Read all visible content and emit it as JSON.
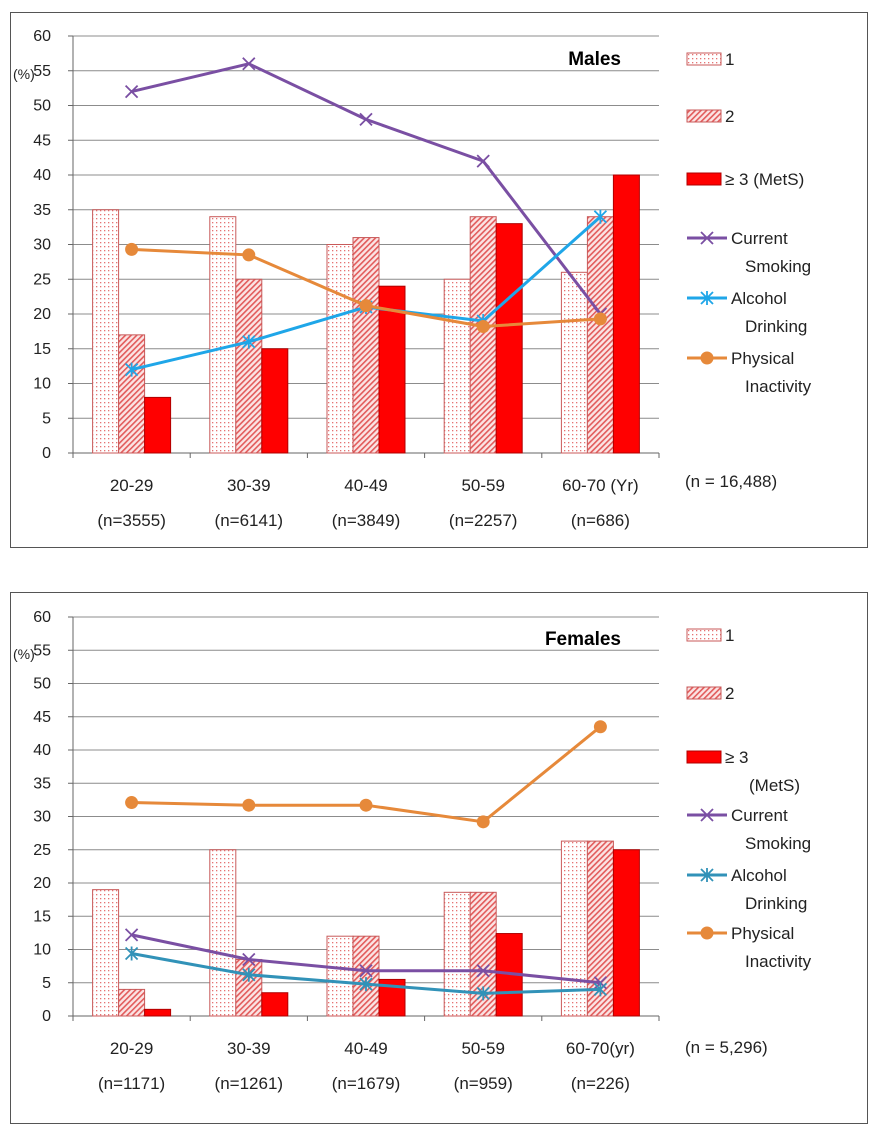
{
  "chart_data": [
    {
      "type": "bar",
      "title": "Males",
      "ylabel": "(%)",
      "ylim": [
        0,
        60
      ],
      "yticks": [
        0,
        5,
        10,
        15,
        20,
        25,
        30,
        35,
        40,
        45,
        50,
        55,
        60
      ],
      "categories": [
        "20-29",
        "30-39",
        "40-49",
        "50-59",
        "60-70  (Yr)"
      ],
      "category_n": [
        "(n=3555)",
        "(n=6141)",
        "(n=3849)",
        "(n=2257)",
        "(n=686)"
      ],
      "total_n": "(n = 16,488)",
      "series": [
        {
          "name": "1",
          "type": "bar",
          "pattern": "dots",
          "color": "#f4a6a6",
          "values": [
            35,
            34,
            30,
            25,
            26
          ]
        },
        {
          "name": "2",
          "type": "bar",
          "pattern": "hatch",
          "color": "#f08080",
          "values": [
            17,
            25,
            31,
            34,
            34
          ]
        },
        {
          "name": "≥ 3  (MetS)",
          "type": "bar",
          "pattern": "solid",
          "color": "#ff0000",
          "values": [
            8,
            15,
            24,
            33,
            40
          ]
        },
        {
          "name": "Current Smoking",
          "type": "line",
          "marker": "x",
          "color": "#7a4fa3",
          "values": [
            52,
            56,
            48,
            42,
            20
          ]
        },
        {
          "name": "Alcohol Drinking",
          "type": "line",
          "marker": "star",
          "color": "#1fa6e8",
          "values": [
            12,
            16,
            21,
            19,
            34
          ]
        },
        {
          "name": "Physical Inactivity",
          "type": "line",
          "marker": "circle",
          "color": "#e6893a",
          "values": [
            29.3,
            28.5,
            21.2,
            18.2,
            19.3
          ]
        }
      ],
      "legend_lines": [
        [
          "1"
        ],
        [
          "2"
        ],
        [
          "≥ 3  (MetS)"
        ],
        [
          "Current",
          "Smoking"
        ],
        [
          "Alcohol",
          "Drinking"
        ],
        [
          "Physical",
          "Inactivity"
        ]
      ],
      "legend": "right"
    },
    {
      "type": "bar",
      "title": "Females",
      "ylabel": "(%)",
      "ylim": [
        0,
        60
      ],
      "yticks": [
        0,
        5,
        10,
        15,
        20,
        25,
        30,
        35,
        40,
        45,
        50,
        55,
        60
      ],
      "categories": [
        "20-29",
        "30-39",
        "40-49",
        "50-59",
        "60-70(yr)"
      ],
      "category_n": [
        "(n=1171)",
        "(n=1261)",
        "(n=1679)",
        "(n=959)",
        "(n=226)"
      ],
      "total_n": "(n  =  5,296)",
      "series": [
        {
          "name": "1",
          "type": "bar",
          "pattern": "dots",
          "color": "#f4a6a6",
          "values": [
            19,
            25,
            12,
            18.6,
            26.3
          ]
        },
        {
          "name": "2",
          "type": "bar",
          "pattern": "hatch",
          "color": "#f08080",
          "values": [
            4,
            8.5,
            12,
            18.6,
            26.3
          ]
        },
        {
          "name": "≥ 3 (MetS)",
          "type": "bar",
          "pattern": "solid",
          "color": "#ff0000",
          "values": [
            1,
            3.5,
            5.5,
            12.4,
            25
          ]
        },
        {
          "name": "Current Smoking",
          "type": "line",
          "marker": "x",
          "color": "#7a4fa3",
          "values": [
            12.2,
            8.5,
            6.8,
            6.8,
            5.0
          ]
        },
        {
          "name": "Alcohol Drinking",
          "type": "line",
          "marker": "star",
          "color": "#3192b8",
          "values": [
            9.4,
            6.2,
            4.8,
            3.4,
            4.0
          ]
        },
        {
          "name": "Physical Inactivity",
          "type": "line",
          "marker": "circle",
          "color": "#e6893a",
          "values": [
            32.1,
            31.7,
            31.7,
            29.2,
            43.5
          ]
        }
      ],
      "legend_lines": [
        [
          "1"
        ],
        [
          "2"
        ],
        [
          "≥ 3",
          "(MetS)"
        ],
        [
          "Current",
          "Smoking"
        ],
        [
          "Alcohol",
          "Drinking"
        ],
        [
          "Physical",
          "Inactivity"
        ]
      ],
      "legend": "right"
    }
  ]
}
